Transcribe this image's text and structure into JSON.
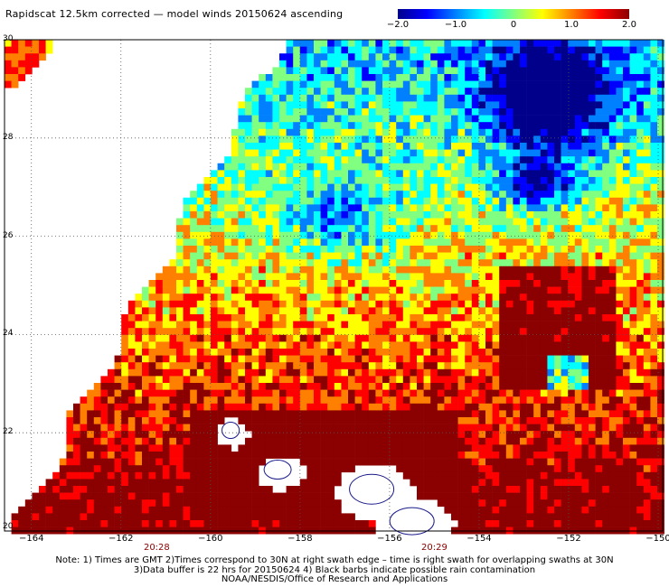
{
  "title": "Rapidscat 12.5km corrected — model winds 20150624 ascending",
  "colorbar": {
    "ticks": [
      "−2.0",
      "−1.0",
      "0",
      "1.0",
      "2.0"
    ],
    "tick_values": [
      -2.0,
      -1.0,
      0,
      1.0,
      2.0
    ],
    "range": [
      -2.0,
      2.0
    ],
    "colors": [
      "#00008b",
      "#0000ff",
      "#0080ff",
      "#00ffff",
      "#80ff80",
      "#ffff00",
      "#ff8000",
      "#ff0000",
      "#8b0000"
    ]
  },
  "map": {
    "lat_labels": [
      "30",
      "28",
      "26",
      "24",
      "22",
      "20"
    ],
    "lat_values": [
      30,
      28,
      26,
      24,
      22,
      20
    ],
    "lon_labels": [
      "−164",
      "−162",
      "−160",
      "−158",
      "−156",
      "−154",
      "−152",
      "−150"
    ],
    "lon_values": [
      -164,
      -162,
      -160,
      -158,
      -156,
      -154,
      -152,
      -150
    ],
    "lat_range": [
      20,
      30
    ],
    "lon_range": [
      -164.6,
      -149.9
    ],
    "times": [
      {
        "label": "20:28",
        "lon": -161.2
      },
      {
        "label": "20:29",
        "lon": -155.0
      }
    ],
    "grid": "dotted"
  },
  "notes": [
    "Note: 1) Times are GMT 2)Times correspond to 30N at right swath edge – time is right swath for overlapping swaths at 30N",
    "3)Data buffer is 22 hrs for 20150624 4) Black barbs indicate possible rain contamination",
    "NOAA/NESDIS/Office of Research and Applications"
  ]
}
